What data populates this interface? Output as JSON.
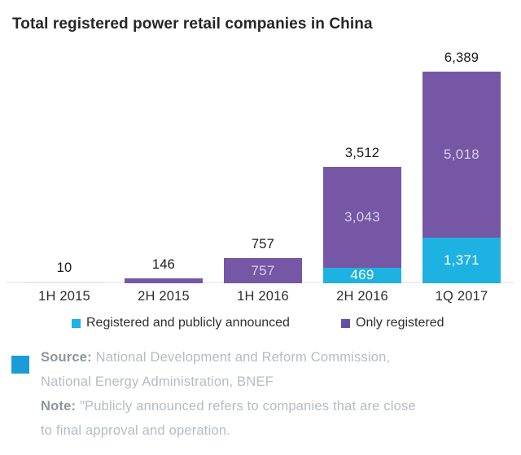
{
  "chart_data": {
    "type": "bar",
    "stacked": true,
    "title": "Total registered power retail companies in China",
    "categories": [
      "1H 2015",
      "2H 2015",
      "1H 2016",
      "2H 2016",
      "1Q 2017"
    ],
    "series": [
      {
        "key": "registered-and-publicly-announced",
        "name": "Registered and publicly announced",
        "color": "#1db2e2",
        "label_color": "#ffffff",
        "values": [
          0,
          0,
          0,
          469,
          1371
        ],
        "labels": [
          "",
          "",
          "",
          "469",
          "1,371"
        ]
      },
      {
        "key": "only-registered",
        "name": "Only registered",
        "color": "#7557a5",
        "label_color": "#d9d0e8",
        "values": [
          10,
          146,
          757,
          3043,
          5018
        ],
        "labels": [
          "",
          "",
          "757",
          "3,043",
          "5,018"
        ]
      }
    ],
    "totals": [
      10,
      146,
      757,
      3512,
      6389
    ],
    "total_labels": [
      "10",
      "146",
      "757",
      "3,512",
      "6,389"
    ],
    "ylim": [
      0,
      6389
    ],
    "grid": false,
    "legend_position": "bottom",
    "sliver_color": "#e9e5f0"
  },
  "legend": {
    "items": [
      {
        "label": "Registered and publicly announced",
        "color": "#1db2e2"
      },
      {
        "label": "Only registered",
        "color": "#6650a3"
      }
    ]
  },
  "footer": {
    "logo_color": "#1a9cd8",
    "source_label": "Source:",
    "source_text": "National Development and Reform Commission, National Energy Administration, BNEF",
    "note_label": "Note:",
    "note_text": "\"Publicly announced refers to companies that are close to final approval and operation."
  }
}
